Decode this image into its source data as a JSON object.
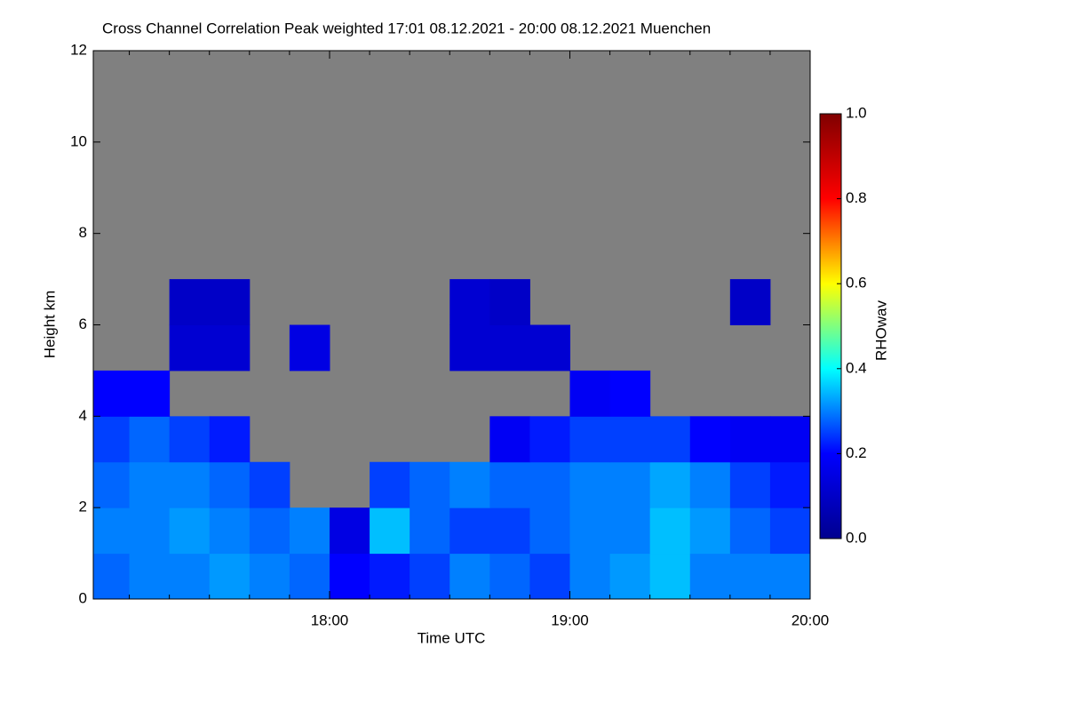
{
  "chart_data": {
    "type": "heatmap",
    "title": "Cross Channel Correlation Peak weighted   17:01 08.12.2021 - 20:00 08.12.2021 Muenchen",
    "x_label": "Time UTC",
    "y_label": "Height km",
    "colorbar_label": "RHOwav",
    "xlim": [
      17.0167,
      20.0
    ],
    "xticks": [
      {
        "value": 18,
        "label": "18:00"
      },
      {
        "value": 19,
        "label": "19:00"
      },
      {
        "value": 20,
        "label": "20:00"
      }
    ],
    "xminorticks": [
      17.1667,
      17.3333,
      17.5,
      17.6667,
      17.8333,
      18.1667,
      18.3333,
      18.5,
      18.6667,
      18.8333,
      19.1667,
      19.3333,
      19.5,
      19.6667,
      19.8333
    ],
    "ylim": [
      0,
      12
    ],
    "yticks": [
      0,
      2,
      4,
      6,
      8,
      10,
      12
    ],
    "clim": [
      0,
      1
    ],
    "cticks": [
      {
        "value": 0,
        "label": "0.0"
      },
      {
        "value": 0.2,
        "label": "0.2"
      },
      {
        "value": 0.4,
        "label": "0.4"
      },
      {
        "value": 0.6,
        "label": "0.6"
      },
      {
        "value": 0.8,
        "label": "0.8"
      },
      {
        "value": 1,
        "label": "1.0"
      }
    ],
    "colormap": [
      "#00008f",
      "#0000ff",
      "#00ffff",
      "#ffff00",
      "#ff0000",
      "#800000"
    ],
    "nodata_color": "#808080",
    "xbins": [
      17,
      17.1667,
      17.3333,
      17.5,
      17.6667,
      17.8333,
      18,
      18.1667,
      18.3333,
      18.5,
      18.6667,
      18.8333,
      19,
      19.1667,
      19.3333,
      19.5,
      19.6667,
      19.8333,
      20
    ],
    "ybins": [
      0,
      1,
      2,
      3,
      4,
      5,
      6,
      7,
      8,
      9,
      10,
      11,
      12
    ],
    "z": [
      [
        0.28,
        0.3,
        0.3,
        0.32,
        0.3,
        0.28,
        0.2,
        0.22,
        0.25,
        0.3,
        0.28,
        0.25,
        0.3,
        0.32,
        0.35,
        0.3,
        0.3,
        0.3
      ],
      [
        0.3,
        0.3,
        0.32,
        0.3,
        0.28,
        0.3,
        0.15,
        0.35,
        0.28,
        0.25,
        0.25,
        0.28,
        0.3,
        0.3,
        0.35,
        0.32,
        0.28,
        0.25
      ],
      [
        0.28,
        0.3,
        0.3,
        0.28,
        0.25,
        null,
        null,
        0.25,
        0.28,
        0.3,
        0.28,
        0.28,
        0.3,
        0.3,
        0.33,
        0.3,
        0.25,
        0.22
      ],
      [
        0.25,
        0.28,
        0.25,
        0.22,
        null,
        null,
        null,
        null,
        null,
        null,
        0.18,
        0.22,
        0.25,
        0.25,
        0.25,
        0.2,
        0.18,
        0.18
      ],
      [
        0.2,
        0.2,
        null,
        null,
        null,
        null,
        null,
        null,
        null,
        null,
        null,
        null,
        0.18,
        0.2,
        null,
        null,
        null,
        null
      ],
      [
        null,
        null,
        0.12,
        0.12,
        null,
        0.15,
        null,
        null,
        null,
        0.12,
        0.12,
        0.12,
        null,
        null,
        null,
        null,
        null,
        null
      ],
      [
        null,
        null,
        0.1,
        0.1,
        null,
        null,
        null,
        null,
        null,
        0.12,
        0.1,
        null,
        null,
        null,
        null,
        null,
        0.1,
        null
      ],
      [
        null,
        null,
        null,
        null,
        null,
        null,
        null,
        null,
        null,
        null,
        null,
        null,
        null,
        null,
        null,
        null,
        null,
        null
      ],
      [
        null,
        null,
        null,
        null,
        null,
        null,
        null,
        null,
        null,
        null,
        null,
        null,
        null,
        null,
        null,
        null,
        null,
        null
      ],
      [
        null,
        null,
        null,
        null,
        null,
        null,
        null,
        null,
        null,
        null,
        null,
        null,
        null,
        null,
        null,
        null,
        null,
        null
      ],
      [
        null,
        null,
        null,
        null,
        null,
        null,
        null,
        null,
        null,
        null,
        null,
        null,
        null,
        null,
        null,
        null,
        null,
        null
      ],
      [
        null,
        null,
        null,
        null,
        null,
        null,
        null,
        null,
        null,
        null,
        null,
        null,
        null,
        null,
        null,
        null,
        null,
        null
      ]
    ]
  }
}
